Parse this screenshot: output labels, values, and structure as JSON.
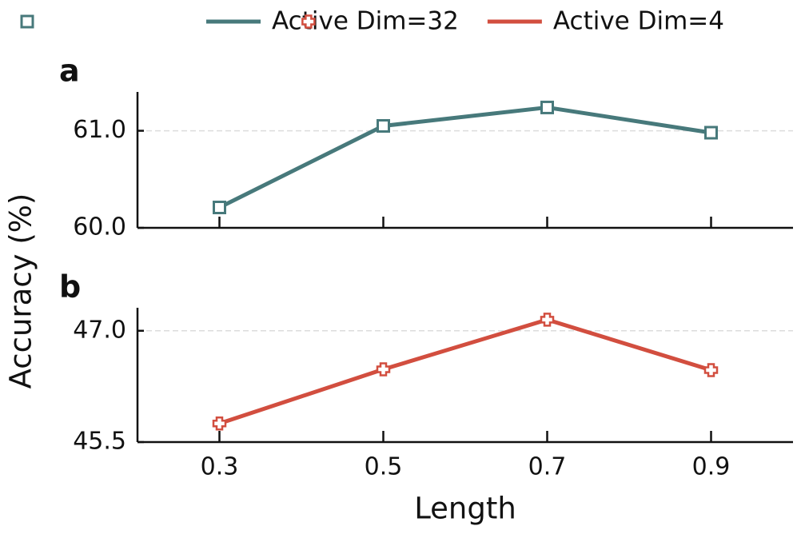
{
  "chart_data": [
    {
      "type": "line",
      "panel_label": "a",
      "ylabel": "Accuracy (%)",
      "x": [
        0.3,
        0.5,
        0.7,
        0.9
      ],
      "series": [
        {
          "name": "Active Dim=32",
          "color": "#47797b",
          "marker": "square",
          "values": [
            60.21,
            61.05,
            61.24,
            60.98
          ]
        }
      ],
      "xlim": [
        0.2,
        1.0
      ],
      "xticks": [
        0.3,
        0.5,
        0.7,
        0.9
      ],
      "xtick_labels": false,
      "ylim": [
        60.0,
        61.4
      ],
      "yticks": [
        {
          "value": 60,
          "label": "60.0"
        },
        {
          "value": 61,
          "label": "61.0"
        }
      ],
      "grid": true,
      "legend": "upper center"
    },
    {
      "type": "line",
      "panel_label": "b",
      "xlabel": "Length",
      "x": [
        0.3,
        0.5,
        0.7,
        0.9
      ],
      "series": [
        {
          "name": "Active Dim=4",
          "color": "#d24e3f",
          "marker": "plus",
          "values": [
            45.75,
            46.48,
            47.15,
            46.47
          ]
        }
      ],
      "xlim": [
        0.2,
        1.0
      ],
      "xticks": [
        0.3,
        0.5,
        0.7,
        0.9
      ],
      "xtick_labels": true,
      "ylim": [
        45.5,
        47.31
      ],
      "yticks": [
        {
          "value": 45.5,
          "label": "45.5"
        },
        {
          "value": 47,
          "label": "47.0"
        }
      ],
      "grid": true
    }
  ]
}
